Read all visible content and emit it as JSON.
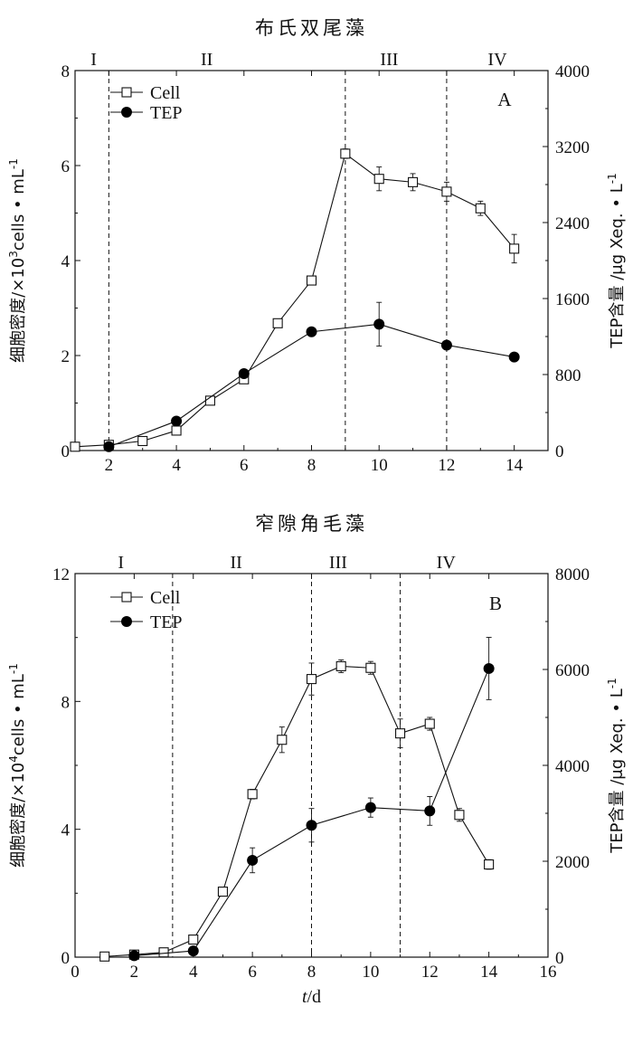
{
  "chart_data": [
    {
      "type": "line",
      "panel_letter": "A",
      "title": "布氏双尾藻",
      "xlabel": "",
      "ylabel_left": "细胞密度/×10³cells • mL⁻¹",
      "ylabel_left_parts": [
        "细胞密度/×10",
        "3",
        "cells • mL",
        "-1"
      ],
      "ylabel_right": "TEP含量 /μg Xeq. • L⁻¹",
      "ylabel_right_parts": [
        "TEP含量 /μg Xeq. • L",
        "-1"
      ],
      "xlim": [
        1,
        15
      ],
      "ylim_left": [
        0,
        8
      ],
      "ylim_right": [
        0,
        4000
      ],
      "x_ticks": [
        2,
        4,
        6,
        8,
        10,
        12,
        14
      ],
      "y_left_ticks": [
        0,
        2,
        4,
        6,
        8
      ],
      "y_right_ticks": [
        0,
        800,
        1600,
        2400,
        3200,
        4000
      ],
      "phases": [
        "I",
        "II",
        "III",
        "IV"
      ],
      "phase_label_x": [
        1.55,
        4.9,
        10.3,
        13.5
      ],
      "phase_boundaries": [
        2,
        9,
        12
      ],
      "legend": [
        "Cell",
        "TEP"
      ],
      "series": [
        {
          "name": "Cell",
          "axis": "left",
          "marker": "open-square",
          "x": [
            1,
            2,
            3,
            4,
            5,
            6,
            7,
            8,
            9,
            10,
            11,
            12,
            13,
            14
          ],
          "y": [
            0.08,
            0.12,
            0.2,
            0.42,
            1.05,
            1.5,
            2.68,
            3.58,
            6.25,
            5.72,
            5.65,
            5.45,
            5.1,
            4.25
          ],
          "err": [
            0.02,
            0.06,
            0.04,
            0.08,
            0.05,
            0.06,
            0.06,
            0.06,
            0.1,
            0.25,
            0.18,
            0.2,
            0.15,
            0.3
          ]
        },
        {
          "name": "TEP",
          "axis": "right",
          "marker": "filled-circle",
          "x": [
            2,
            4,
            6,
            8,
            10,
            12,
            14
          ],
          "y": [
            40,
            310,
            810,
            1250,
            1330,
            1110,
            985
          ],
          "err": [
            10,
            20,
            25,
            20,
            230,
            20,
            15
          ]
        }
      ]
    },
    {
      "type": "line",
      "panel_letter": "B",
      "title": "窄隙角毛藻",
      "xlabel": "t/d",
      "ylabel_left": "细胞密度/×10⁴cells • mL⁻¹",
      "ylabel_left_parts": [
        "细胞密度/×10",
        "4",
        "cells • mL",
        "-1"
      ],
      "ylabel_right": "TEP含量 /μg Xeq. • L⁻¹",
      "ylabel_right_parts": [
        "TEP含量 /μg Xeq. • L",
        "-1"
      ],
      "xlim": [
        0,
        16
      ],
      "ylim_left": [
        0,
        12
      ],
      "ylim_right": [
        0,
        8000
      ],
      "x_ticks": [
        0,
        2,
        4,
        6,
        8,
        10,
        12,
        14,
        16
      ],
      "y_left_ticks": [
        0,
        4,
        8,
        12
      ],
      "y_right_ticks": [
        0,
        2000,
        4000,
        6000,
        8000
      ],
      "phases": [
        "I",
        "II",
        "III",
        "IV"
      ],
      "phase_label_x": [
        1.55,
        5.45,
        8.9,
        12.55
      ],
      "phase_boundaries": [
        3.3,
        8,
        11
      ],
      "legend": [
        "Cell",
        "TEP"
      ],
      "series": [
        {
          "name": "Cell",
          "axis": "left",
          "marker": "open-square",
          "x": [
            1,
            2,
            3,
            4,
            5,
            6,
            7,
            8,
            9,
            10,
            11,
            12,
            13,
            14
          ],
          "y": [
            0.02,
            0.08,
            0.15,
            0.55,
            2.05,
            5.1,
            6.8,
            8.7,
            9.1,
            9.05,
            7.0,
            7.3,
            4.45,
            2.9
          ],
          "err": [
            0.02,
            0.05,
            0.05,
            0.1,
            0.12,
            0.15,
            0.4,
            0.5,
            0.2,
            0.2,
            0.45,
            0.2,
            0.2,
            0.15
          ]
        },
        {
          "name": "TEP",
          "axis": "right",
          "marker": "filled-circle",
          "x": [
            2,
            4,
            6,
            8,
            10,
            12,
            14
          ],
          "y": [
            30,
            130,
            2020,
            2750,
            3120,
            3050,
            6020
          ],
          "err": [
            10,
            20,
            260,
            350,
            200,
            300,
            650
          ]
        }
      ]
    }
  ]
}
